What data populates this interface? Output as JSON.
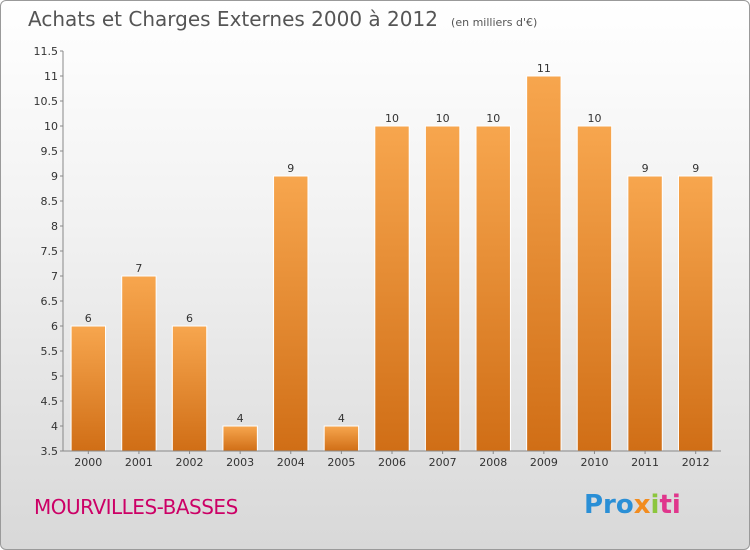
{
  "header": {
    "title": "Achats et Charges Externes 2000 à 2012",
    "unit": "(en milliers d'€)"
  },
  "footer": {
    "place": "MOURVILLES-BASSES",
    "logo": "Proxiti"
  },
  "colors": {
    "bar_top": "#f7a64e",
    "bar_bottom": "#d06e16",
    "bar_edge": "#ffffff"
  },
  "chart_data": {
    "type": "bar",
    "title": "Achats et Charges Externes 2000 à 2012",
    "subtitle": "(en milliers d'€)",
    "categories": [
      "2000",
      "2001",
      "2002",
      "2003",
      "2004",
      "2005",
      "2006",
      "2007",
      "2008",
      "2009",
      "2010",
      "2011",
      "2012"
    ],
    "values": [
      6,
      7,
      6,
      4,
      9,
      4,
      10,
      10,
      10,
      11,
      10,
      9,
      9
    ],
    "data_labels": [
      "6",
      "7",
      "6",
      "4",
      "9",
      "4",
      "10",
      "10",
      "10",
      "11",
      "10",
      "9",
      "9"
    ],
    "ylim": [
      3.5,
      11.5
    ],
    "yticks": [
      3.5,
      4,
      4.5,
      5,
      5.5,
      6,
      6.5,
      7,
      7.5,
      8,
      8.5,
      9,
      9.5,
      10,
      10.5,
      11,
      11.5
    ],
    "ytick_labels": [
      "3.5",
      "4",
      "4.5",
      "5",
      "5.5",
      "6",
      "6.5",
      "7",
      "7.5",
      "8",
      "8.5",
      "9",
      "9.5",
      "10",
      "10.5",
      "11",
      "11.5"
    ],
    "xlabel": "",
    "ylabel": "",
    "grid": false,
    "legend": "none"
  }
}
